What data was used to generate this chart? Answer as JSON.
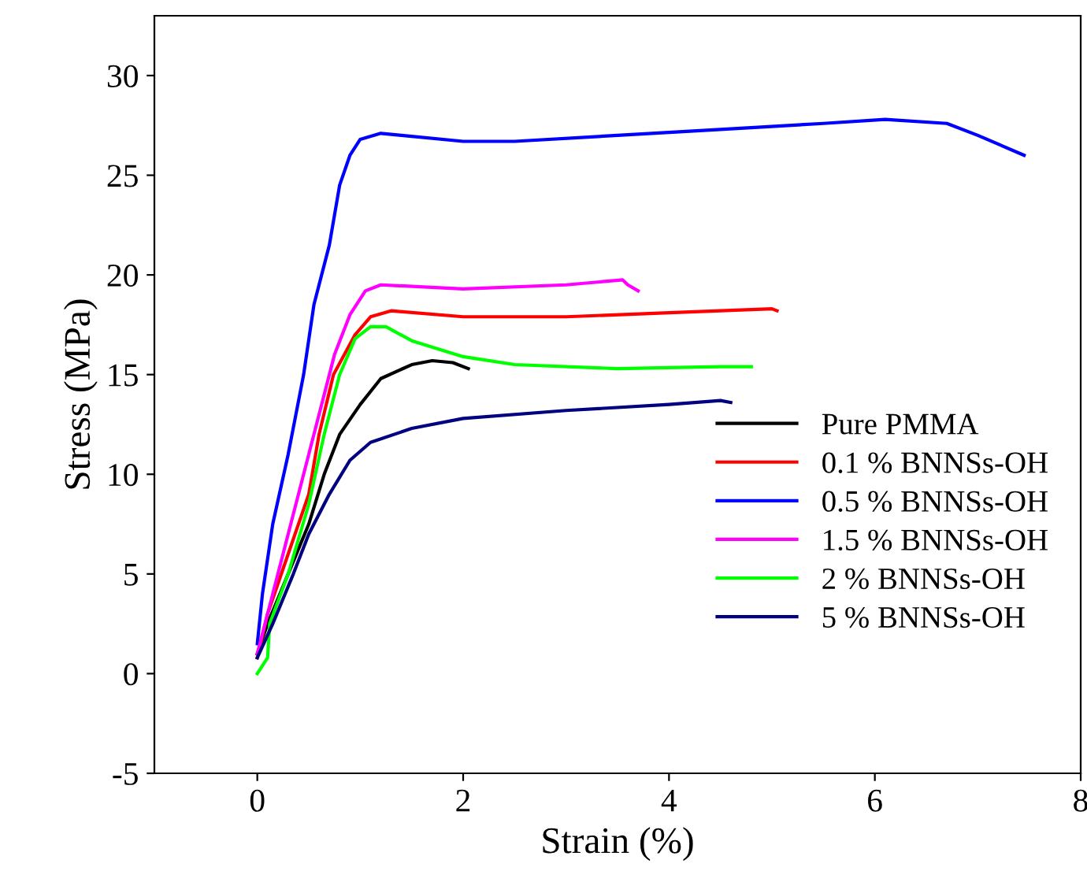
{
  "chart_data": {
    "type": "line",
    "xlabel": "Strain (%)",
    "ylabel": "Stress (MPa)",
    "xlim": [
      -1,
      8
    ],
    "ylim": [
      -5,
      33
    ],
    "xticks": [
      0,
      2,
      4,
      6,
      8
    ],
    "yticks": [
      -5,
      0,
      5,
      10,
      15,
      20,
      25,
      30
    ],
    "grid": false,
    "legend": "right",
    "marker": "none",
    "line_style": "solid",
    "series": [
      {
        "name": "Pure PMMA",
        "color": "#000000",
        "x": [
          0,
          0.1,
          0.3,
          0.5,
          0.65,
          0.8,
          1,
          1.2,
          1.5,
          1.7,
          1.9,
          2.05
        ],
        "values": [
          1,
          2.5,
          5,
          7.5,
          10,
          12,
          13.5,
          14.8,
          15.5,
          15.7,
          15.6,
          15.3
        ]
      },
      {
        "name": "0.1 % BNNSs-OH",
        "color": "#ff0000",
        "x": [
          0,
          0.1,
          0.3,
          0.5,
          0.6,
          0.74,
          0.95,
          1.1,
          1.3,
          2,
          3,
          4,
          5,
          5.05
        ],
        "values": [
          0.8,
          3,
          6,
          9,
          12,
          15,
          17,
          17.9,
          18.2,
          17.9,
          17.9,
          18.1,
          18.3,
          18.2
        ]
      },
      {
        "name": "0.5 % BNNSs-OH",
        "color": "#0000ff",
        "x": [
          0,
          0.05,
          0.15,
          0.3,
          0.45,
          0.55,
          0.7,
          0.8,
          0.9,
          1,
          1.2,
          1.4,
          2,
          2.5,
          3.5,
          4.5,
          5.5,
          6.1,
          6.7,
          7,
          7.45
        ],
        "values": [
          1.5,
          4,
          7.5,
          11,
          15,
          18.5,
          21.5,
          24.5,
          26,
          26.8,
          27.1,
          27,
          26.7,
          26.7,
          27,
          27.3,
          27.6,
          27.8,
          27.6,
          27,
          26
        ]
      },
      {
        "name": "1.5 % BNNSs-OH",
        "color": "#ff00ff",
        "x": [
          0,
          0.1,
          0.25,
          0.45,
          0.6,
          0.75,
          0.9,
          1.05,
          1.2,
          2,
          3,
          3.55,
          3.6,
          3.7
        ],
        "values": [
          1,
          3,
          6,
          10,
          13,
          16,
          18,
          19.2,
          19.5,
          19.3,
          19.5,
          19.75,
          19.5,
          19.2
        ]
      },
      {
        "name": "2 % BNNSs-OH",
        "color": "#00ff00",
        "x": [
          0,
          0.1,
          0.12,
          0.3,
          0.5,
          0.65,
          0.8,
          0.95,
          1.1,
          1.25,
          1.5,
          2,
          2.5,
          3.5,
          4.5,
          4.8
        ],
        "values": [
          0,
          0.8,
          2.5,
          5,
          8.5,
          12,
          15,
          16.8,
          17.4,
          17.4,
          16.7,
          15.9,
          15.5,
          15.3,
          15.4,
          15.4
        ]
      },
      {
        "name": "5 % BNNSs-OH",
        "color": "#000080",
        "x": [
          0,
          0.15,
          0.35,
          0.5,
          0.7,
          0.9,
          1.1,
          1.5,
          2,
          3,
          4,
          4.5,
          4.6
        ],
        "values": [
          0.8,
          2.5,
          5,
          7,
          9,
          10.7,
          11.6,
          12.3,
          12.8,
          13.2,
          13.5,
          13.7,
          13.6
        ]
      }
    ]
  }
}
